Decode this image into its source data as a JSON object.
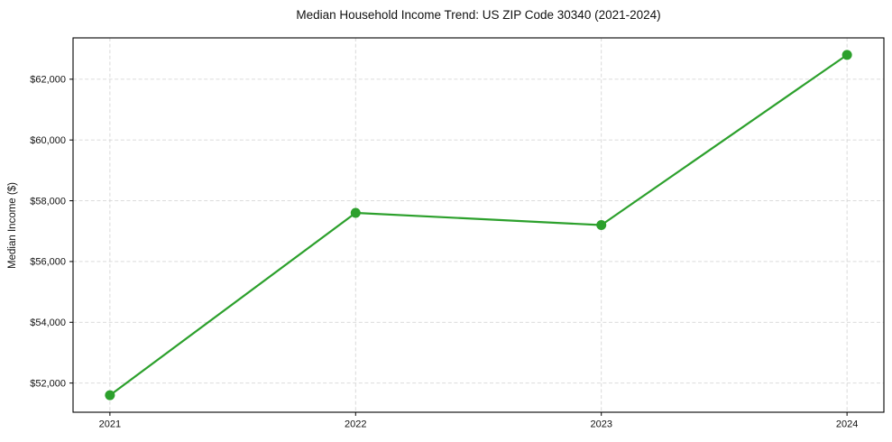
{
  "chart_data": {
    "type": "line",
    "title": "Median Household Income Trend: US ZIP Code 30340 (2021-2024)",
    "xlabel": "",
    "ylabel": "Median Income ($)",
    "x": [
      2021,
      2022,
      2023,
      2024
    ],
    "values": [
      51600,
      57600,
      57200,
      62800
    ],
    "xticks": [
      "2021",
      "2022",
      "2023",
      "2024"
    ],
    "yticks": [
      52000,
      54000,
      56000,
      58000,
      60000,
      62000
    ],
    "ytick_labels": [
      "$52,000",
      "$54,000",
      "$56,000",
      "$58,000",
      "$60,000",
      "$62,000"
    ],
    "xlim": [
      2020.85,
      2024.15
    ],
    "ylim": [
      51040,
      63360
    ],
    "grid": true,
    "legend_position": "none",
    "line_color": "#2ca02c",
    "marker": "circle",
    "marker_color": "#2ca02c",
    "grid_color": "#d6d6d6",
    "spine_color": "#000000",
    "background": "#ffffff"
  }
}
